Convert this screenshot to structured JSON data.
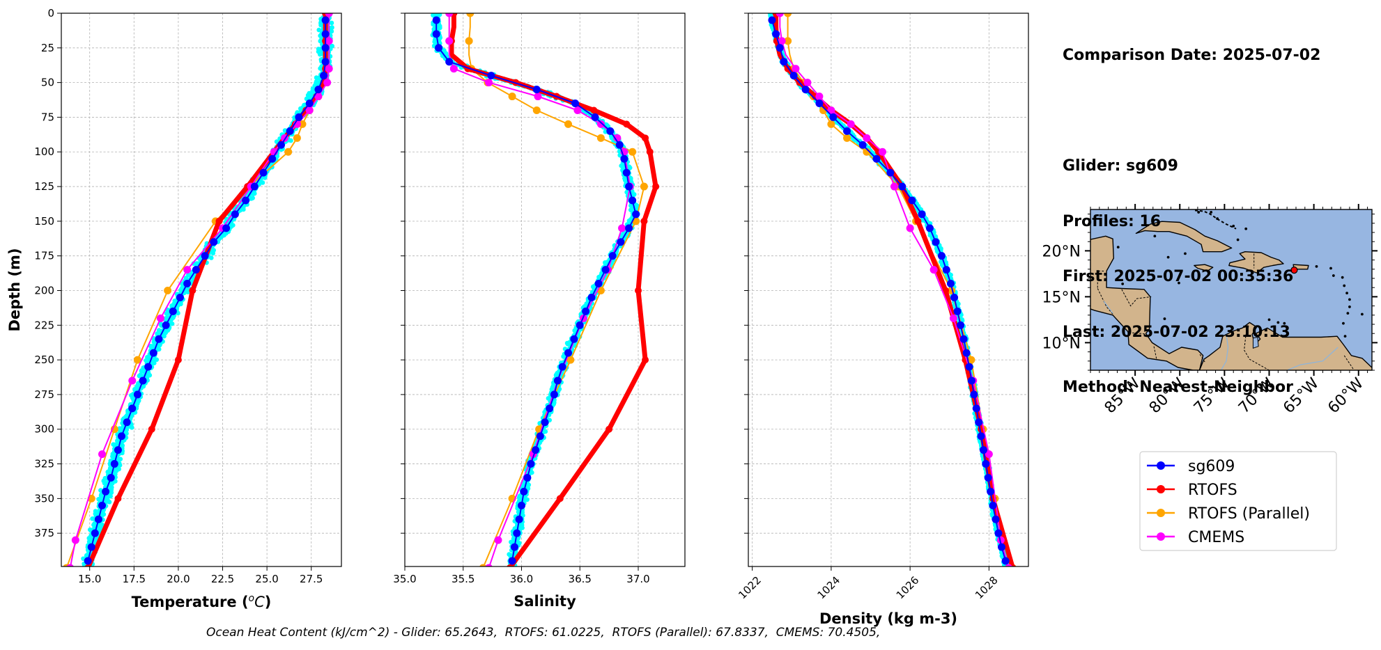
{
  "info": {
    "comparison_date": "Comparison Date: 2025-07-02",
    "glider": "Glider: sg609",
    "profiles": "Profiles: 16",
    "first": "First: 2025-07-02 00:35:36",
    "last": "Last: 2025-07-02 23:10:13",
    "method": "Method: Nearest-Neighbor"
  },
  "footer": "Ocean Heat Content (kJ/cm^2) - Glider: 65.2643,  RTOFS: 61.0225,  RTOFS (Parallel): 67.8337,  CMEMS: 70.4505,",
  "colors": {
    "sg609": "#0000ff",
    "sg609_scatter": "#00ffff",
    "rtofs": "#ff0000",
    "rtofs_parallel": "#ffa500",
    "cmems": "#ff00ff",
    "ocean": "#97b6e1",
    "land": "#d2b48c",
    "grid": "#b0b0b0"
  },
  "legend": [
    {
      "name": "sg609",
      "color": "#0000ff"
    },
    {
      "name": "RTOFS",
      "color": "#ff0000"
    },
    {
      "name": "RTOFS (Parallel)",
      "color": "#ffa500"
    },
    {
      "name": "CMEMS",
      "color": "#ff00ff"
    }
  ],
  "chart_data": [
    {
      "type": "line",
      "xlabel": "Temperature ($^{o}C$)",
      "ylabel": "Depth (m)",
      "xlim": [
        13.4,
        29.2
      ],
      "ylim": [
        399,
        0
      ],
      "y_inverted": true,
      "xticks": [
        15.0,
        17.5,
        20.0,
        22.5,
        25.0,
        27.5
      ],
      "xtick_labels": [
        "15.0",
        "17.5",
        "20.0",
        "22.5",
        "25.0",
        "27.5"
      ],
      "yticks": [
        0,
        25,
        50,
        75,
        100,
        125,
        150,
        175,
        200,
        225,
        250,
        275,
        300,
        325,
        350,
        375
      ],
      "grid": true,
      "series": [
        {
          "name": "sg609",
          "depth": [
            5,
            15,
            25,
            35,
            45,
            55,
            65,
            75,
            85,
            95,
            105,
            115,
            125,
            135,
            145,
            155,
            165,
            175,
            185,
            195,
            205,
            215,
            225,
            235,
            245,
            255,
            265,
            275,
            285,
            295,
            305,
            315,
            325,
            335,
            345,
            355,
            365,
            375,
            385,
            395
          ],
          "values": [
            28.3,
            28.3,
            28.3,
            28.3,
            28.2,
            27.9,
            27.4,
            26.8,
            26.3,
            25.8,
            25.3,
            24.8,
            24.3,
            23.8,
            23.2,
            22.7,
            22.0,
            21.5,
            21.0,
            20.5,
            20.1,
            19.7,
            19.3,
            18.9,
            18.6,
            18.3,
            18.0,
            17.7,
            17.4,
            17.1,
            16.8,
            16.6,
            16.4,
            16.2,
            15.9,
            15.7,
            15.5,
            15.3,
            15.1,
            14.9
          ]
        },
        {
          "name": "RTOFS",
          "depth": [
            0,
            10,
            20,
            30,
            40,
            50,
            60,
            70,
            80,
            90,
            100,
            125,
            150,
            200,
            250,
            300,
            350,
            400
          ],
          "values": [
            28.3,
            28.3,
            28.3,
            28.3,
            28.3,
            28.2,
            27.8,
            27.2,
            26.6,
            26.0,
            25.4,
            23.9,
            22.3,
            20.8,
            20.0,
            18.5,
            16.6,
            14.9
          ]
        },
        {
          "name": "RTOFS (Parallel)",
          "depth": [
            0,
            10,
            20,
            30,
            40,
            50,
            60,
            70,
            80,
            90,
            100,
            125,
            150,
            200,
            250,
            300,
            350,
            400
          ],
          "values": [
            28.4,
            28.4,
            28.4,
            28.4,
            28.4,
            28.3,
            27.9,
            27.4,
            27.0,
            26.7,
            26.2,
            24.0,
            22.1,
            19.4,
            17.7,
            16.4,
            15.1,
            13.7
          ]
        },
        {
          "name": "CMEMS",
          "depth": [
            0,
            10,
            20,
            30,
            40,
            50,
            60,
            70,
            80,
            90,
            100,
            125,
            155,
            185,
            220,
            265,
            318,
            380,
            400
          ],
          "values": [
            28.5,
            28.5,
            28.5,
            28.5,
            28.5,
            28.4,
            27.9,
            27.4,
            26.7,
            26.0,
            25.4,
            24.1,
            22.5,
            20.5,
            19.0,
            17.4,
            15.7,
            14.2,
            13.9
          ]
        }
      ]
    },
    {
      "type": "line",
      "xlabel": "Salinity",
      "xlim": [
        35.0,
        37.4
      ],
      "ylim": [
        399,
        0
      ],
      "y_inverted": true,
      "xticks": [
        35.0,
        35.5,
        36.0,
        36.5,
        37.0
      ],
      "xtick_labels": [
        "35.0",
        "35.5",
        "36.0",
        "36.5",
        "37.0"
      ],
      "grid": true,
      "series": [
        {
          "name": "sg609",
          "depth": [
            5,
            15,
            25,
            35,
            45,
            55,
            65,
            75,
            85,
            95,
            105,
            115,
            125,
            135,
            145,
            155,
            165,
            175,
            185,
            195,
            205,
            215,
            225,
            235,
            245,
            255,
            265,
            275,
            285,
            295,
            305,
            315,
            325,
            335,
            345,
            355,
            365,
            375,
            385,
            395
          ],
          "values": [
            35.27,
            35.27,
            35.29,
            35.38,
            35.74,
            36.13,
            36.46,
            36.63,
            36.76,
            36.84,
            36.88,
            36.9,
            36.92,
            36.95,
            36.98,
            36.92,
            36.85,
            36.78,
            36.72,
            36.66,
            36.6,
            36.55,
            36.5,
            36.45,
            36.4,
            36.35,
            36.31,
            36.28,
            36.24,
            36.2,
            36.16,
            36.12,
            36.08,
            36.05,
            36.02,
            36.0,
            35.98,
            35.96,
            35.94,
            35.92
          ]
        },
        {
          "name": "RTOFS",
          "depth": [
            0,
            10,
            20,
            30,
            40,
            50,
            60,
            70,
            80,
            90,
            100,
            125,
            150,
            200,
            250,
            300,
            350,
            400
          ],
          "values": [
            35.42,
            35.42,
            35.4,
            35.4,
            35.54,
            35.95,
            36.3,
            36.62,
            36.9,
            37.06,
            37.1,
            37.15,
            37.05,
            37.0,
            37.06,
            36.75,
            36.33,
            35.9
          ]
        },
        {
          "name": "RTOFS (Parallel)",
          "depth": [
            0,
            10,
            20,
            30,
            40,
            50,
            60,
            70,
            80,
            90,
            100,
            125,
            150,
            200,
            250,
            300,
            350,
            400
          ],
          "values": [
            35.56,
            35.56,
            35.55,
            35.55,
            35.57,
            35.71,
            35.92,
            36.13,
            36.4,
            36.68,
            36.95,
            37.05,
            36.98,
            36.68,
            36.42,
            36.15,
            35.92,
            35.67
          ]
        },
        {
          "name": "CMEMS",
          "depth": [
            0,
            10,
            20,
            30,
            40,
            50,
            60,
            70,
            80,
            90,
            100,
            125,
            155,
            185,
            220,
            265,
            318,
            380,
            400
          ],
          "values": [
            35.38,
            35.38,
            35.38,
            35.38,
            35.42,
            35.72,
            36.14,
            36.48,
            36.68,
            36.82,
            36.88,
            36.93,
            36.86,
            36.74,
            36.53,
            36.31,
            36.1,
            35.8,
            35.72
          ]
        }
      ]
    },
    {
      "type": "line",
      "xlabel": "Density (kg m-3)",
      "xlim": [
        1021.9,
        1029.0
      ],
      "ylim": [
        399,
        0
      ],
      "y_inverted": true,
      "xticks": [
        1022,
        1024,
        1026,
        1028
      ],
      "xtick_labels": [
        "1022",
        "1024",
        "1026",
        "1028"
      ],
      "grid": true,
      "series": [
        {
          "name": "sg609",
          "depth": [
            5,
            15,
            25,
            35,
            45,
            55,
            65,
            75,
            85,
            95,
            105,
            115,
            125,
            135,
            145,
            155,
            165,
            175,
            185,
            195,
            205,
            215,
            225,
            235,
            245,
            255,
            265,
            275,
            285,
            295,
            305,
            315,
            325,
            335,
            345,
            355,
            365,
            375,
            385,
            395
          ],
          "values": [
            1022.5,
            1022.6,
            1022.7,
            1022.8,
            1023.05,
            1023.35,
            1023.7,
            1024.05,
            1024.4,
            1024.8,
            1025.15,
            1025.5,
            1025.8,
            1026.05,
            1026.3,
            1026.5,
            1026.65,
            1026.8,
            1026.92,
            1027.03,
            1027.12,
            1027.2,
            1027.28,
            1027.36,
            1027.43,
            1027.5,
            1027.56,
            1027.62,
            1027.68,
            1027.74,
            1027.8,
            1027.86,
            1027.92,
            1027.98,
            1028.04,
            1028.1,
            1028.17,
            1028.24,
            1028.32,
            1028.42
          ]
        },
        {
          "name": "RTOFS",
          "depth": [
            0,
            10,
            20,
            30,
            40,
            50,
            60,
            70,
            80,
            90,
            100,
            125,
            150,
            200,
            250,
            300,
            350,
            400
          ],
          "values": [
            1022.6,
            1022.6,
            1022.62,
            1022.7,
            1022.9,
            1023.2,
            1023.6,
            1024.0,
            1024.5,
            1024.9,
            1025.2,
            1025.8,
            1026.2,
            1026.9,
            1027.4,
            1027.8,
            1028.1,
            1028.6
          ]
        },
        {
          "name": "RTOFS (Parallel)",
          "depth": [
            0,
            10,
            20,
            30,
            40,
            50,
            60,
            70,
            80,
            90,
            100,
            125,
            150,
            200,
            250,
            300,
            350,
            400
          ],
          "values": [
            1022.9,
            1022.9,
            1022.9,
            1022.95,
            1023.05,
            1023.3,
            1023.55,
            1023.8,
            1024.0,
            1024.4,
            1024.9,
            1025.7,
            1026.15,
            1027.05,
            1027.55,
            1027.85,
            1028.15,
            1028.6
          ]
        },
        {
          "name": "CMEMS",
          "depth": [
            0,
            10,
            20,
            30,
            40,
            50,
            60,
            70,
            80,
            90,
            100,
            125,
            155,
            185,
            220,
            265,
            318,
            380,
            400
          ],
          "values": [
            1022.7,
            1022.7,
            1022.75,
            1022.85,
            1023.1,
            1023.4,
            1023.7,
            1024.0,
            1024.5,
            1024.9,
            1025.3,
            1025.6,
            1026.0,
            1026.6,
            1027.1,
            1027.6,
            1028.0,
            1028.3,
            1028.5
          ]
        }
      ]
    }
  ],
  "map": {
    "lon_range": [
      -90,
      -58.5
    ],
    "lat_range": [
      7,
      24.5
    ],
    "lon_ticks": [
      -85,
      -80,
      -75,
      -70,
      -65,
      -60
    ],
    "lon_labels": [
      "85°W",
      "80°W",
      "75°W",
      "70°W",
      "65°W",
      "60°W"
    ],
    "lat_ticks": [
      20,
      15,
      10
    ],
    "lat_labels": [
      "20°N",
      "15°N",
      "10°N"
    ],
    "glider_position": {
      "lon": -67.2,
      "lat": 17.9
    }
  }
}
